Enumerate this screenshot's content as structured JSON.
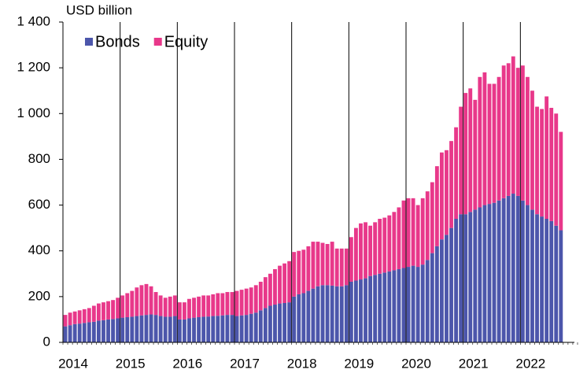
{
  "chart_data": {
    "type": "stacked_bar",
    "unit_label": "USD billion",
    "categories": [
      "2014",
      null,
      null,
      null,
      null,
      null,
      null,
      null,
      null,
      null,
      null,
      null,
      "2015",
      null,
      null,
      null,
      null,
      null,
      null,
      null,
      null,
      null,
      null,
      null,
      "2016",
      null,
      null,
      null,
      null,
      null,
      null,
      null,
      null,
      null,
      null,
      null,
      "2017",
      null,
      null,
      null,
      null,
      null,
      null,
      null,
      null,
      null,
      null,
      null,
      "2018",
      null,
      null,
      null,
      null,
      null,
      null,
      null,
      null,
      null,
      null,
      null,
      "2019",
      null,
      null,
      null,
      null,
      null,
      null,
      null,
      null,
      null,
      null,
      null,
      "2020",
      null,
      null,
      null,
      null,
      null,
      null,
      null,
      null,
      null,
      null,
      null,
      "2021",
      null,
      null,
      null,
      null,
      null,
      null,
      null,
      null,
      null,
      null,
      null,
      "2022",
      null,
      null,
      null,
      null,
      null,
      null,
      null,
      null
    ],
    "series": [
      {
        "name": "Bonds",
        "color": "#4c56ab",
        "values": [
          70,
          75,
          80,
          82,
          85,
          88,
          90,
          95,
          97,
          100,
          102,
          105,
          108,
          110,
          112,
          115,
          118,
          120,
          122,
          120,
          115,
          112,
          112,
          115,
          100,
          100,
          105,
          108,
          110,
          112,
          113,
          115,
          116,
          118,
          120,
          120,
          115,
          118,
          120,
          125,
          130,
          140,
          150,
          160,
          165,
          170,
          172,
          175,
          200,
          210,
          215,
          225,
          235,
          245,
          250,
          250,
          248,
          245,
          245,
          250,
          265,
          270,
          275,
          280,
          290,
          295,
          300,
          305,
          310,
          315,
          320,
          325,
          330,
          335,
          330,
          340,
          360,
          390,
          420,
          450,
          470,
          500,
          540,
          560,
          560,
          570,
          580,
          590,
          600,
          605,
          610,
          620,
          630,
          640,
          650,
          640,
          620,
          600,
          580,
          560,
          550,
          540,
          530,
          510,
          490
        ]
      },
      {
        "name": "Equity",
        "color": "#e8388a",
        "values": [
          50,
          55,
          55,
          58,
          60,
          62,
          70,
          75,
          78,
          80,
          83,
          90,
          97,
          105,
          113,
          125,
          132,
          135,
          123,
          100,
          90,
          83,
          88,
          90,
          75,
          75,
          85,
          87,
          90,
          93,
          92,
          95,
          99,
          97,
          100,
          100,
          110,
          112,
          115,
          115,
          120,
          125,
          135,
          140,
          155,
          165,
          173,
          180,
          195,
          190,
          190,
          195,
          205,
          195,
          185,
          180,
          192,
          165,
          165,
          160,
          195,
          230,
          245,
          245,
          220,
          230,
          240,
          240,
          245,
          255,
          270,
          295,
          300,
          295,
          270,
          290,
          300,
          310,
          350,
          380,
          370,
          380,
          400,
          470,
          530,
          540,
          480,
          570,
          580,
          525,
          520,
          540,
          580,
          580,
          600,
          560,
          590,
          560,
          520,
          470,
          470,
          535,
          495,
          490,
          430
        ]
      }
    ],
    "ylim": [
      0,
      1400
    ],
    "yticks": [
      0,
      200,
      400,
      600,
      800,
      {
        "value": 1000,
        "label": "1 000"
      },
      {
        "value": 1200,
        "label": "1 200"
      },
      {
        "value": 1400,
        "label": "1 400"
      }
    ],
    "legend": "top-left"
  }
}
